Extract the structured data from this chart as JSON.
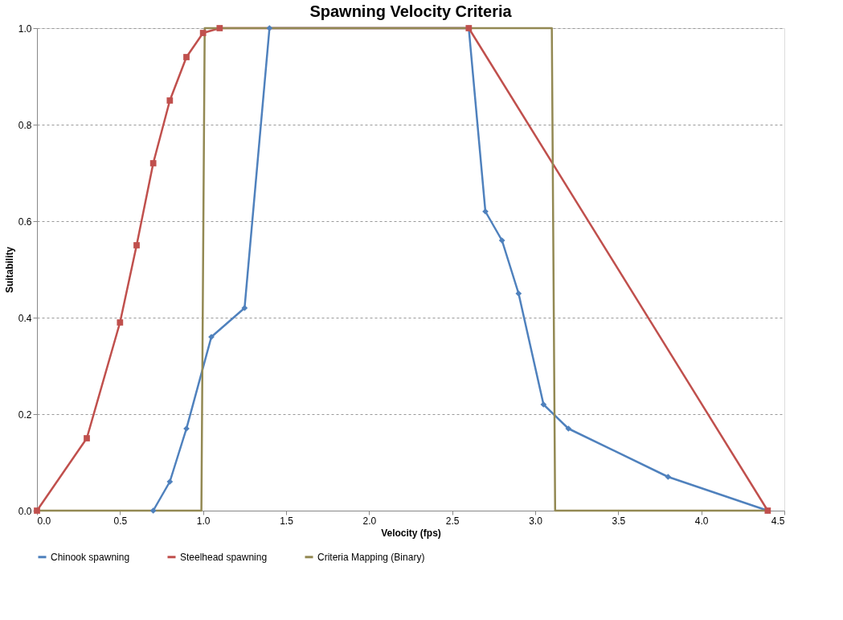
{
  "chart_data": {
    "type": "line",
    "title": "Spawning Velocity Criteria",
    "xlabel": "Velocity (fps)",
    "ylabel": "Suitability",
    "xlim": [
      0,
      4.5
    ],
    "xticks": [
      {
        "value": 0,
        "label": "0.0"
      },
      0.5,
      {
        "value": 1,
        "label": "1.0"
      },
      1.5,
      {
        "value": 2,
        "label": "2.0"
      },
      2.5,
      {
        "value": 3,
        "label": "3.0"
      },
      3.5,
      {
        "value": 4,
        "label": "4.0"
      },
      4.5
    ],
    "ylim": [
      0,
      1
    ],
    "yticks": [
      {
        "value": 0,
        "label": "0.0"
      },
      0.2,
      0.4,
      0.6,
      0.8,
      {
        "value": 1,
        "label": "1.0"
      }
    ],
    "grid": "y",
    "legend": "bottom",
    "line_style": "solid",
    "series": [
      {
        "name": "Chinook spawning",
        "color": "#4f81bd",
        "marker": "diamond",
        "x": [
          0.7,
          0.8,
          0.9,
          1.05,
          1.25,
          1.4,
          2.6,
          2.7,
          2.8,
          2.9,
          3.05,
          3.2,
          3.8,
          4.4
        ],
        "values": [
          0,
          0.06,
          0.17,
          0.36,
          0.42,
          1.0,
          1.0,
          0.62,
          0.56,
          0.45,
          0.22,
          0.17,
          0.07,
          0
        ]
      },
      {
        "name": "Steelhead spawning",
        "color": "#c0504d",
        "marker": "square",
        "x": [
          0,
          0.3,
          0.5,
          0.6,
          0.7,
          0.8,
          0.9,
          1.0,
          1.1,
          2.6,
          4.4
        ],
        "values": [
          0,
          0.15,
          0.39,
          0.55,
          0.72,
          0.85,
          0.94,
          0.99,
          1.0,
          1.0,
          0
        ]
      },
      {
        "name": "Criteria Mapping (Binary)",
        "color": "#938953",
        "marker": "none",
        "x": [
          0,
          0.99,
          1.01,
          3.1,
          3.12,
          4.4
        ],
        "values": [
          0,
          0,
          1,
          1,
          0,
          0
        ]
      }
    ]
  }
}
